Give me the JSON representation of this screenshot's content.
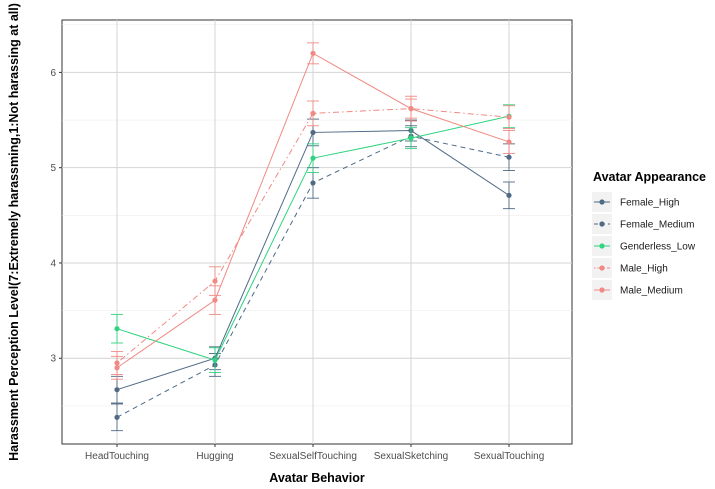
{
  "chart_data": {
    "type": "line",
    "xlabel": "Avatar Behavior",
    "ylabel": "Harassment Perception Level(7:Extremely harassming,1:Not harassing at all)",
    "ylim": [
      2.1,
      6.55
    ],
    "yticks": [
      3,
      4,
      5,
      6
    ],
    "grid": true,
    "legend_title": "Avatar Appearance",
    "legend_position": "right",
    "categories": [
      "HeadTouching",
      "Hugging",
      "SexualSelfTouching",
      "SexualSketching",
      "SexualTouching"
    ],
    "series": [
      {
        "name": "Female_High",
        "color": "#4e6a85",
        "dash": "solid",
        "values": [
          2.67,
          3.0,
          5.37,
          5.39,
          4.71
        ],
        "errors": [
          0.14,
          0.12,
          0.14,
          0.11,
          0.14
        ]
      },
      {
        "name": "Female_Medium",
        "color": "#4e6a85",
        "dash": "dashed",
        "values": [
          2.38,
          2.93,
          4.84,
          5.33,
          5.11
        ],
        "errors": [
          0.14,
          0.12,
          0.16,
          0.11,
          0.14
        ]
      },
      {
        "name": "Genderless_Low",
        "color": "#2ed47f",
        "dash": "solid",
        "values": [
          3.31,
          2.98,
          5.1,
          5.31,
          5.54
        ],
        "errors": [
          0.15,
          0.13,
          0.15,
          0.11,
          0.12
        ]
      },
      {
        "name": "Male_High",
        "color": "#f08a84",
        "dash": "dotdash",
        "values": [
          2.95,
          3.81,
          5.57,
          5.62,
          5.53
        ],
        "errors": [
          0.12,
          0.15,
          0.13,
          0.1,
          0.12
        ]
      },
      {
        "name": "Male_Medium",
        "color": "#f08a84",
        "dash": "solid",
        "values": [
          2.9,
          3.61,
          6.2,
          5.62,
          5.27
        ],
        "errors": [
          0.12,
          0.15,
          0.11,
          0.13,
          0.12
        ]
      }
    ]
  }
}
